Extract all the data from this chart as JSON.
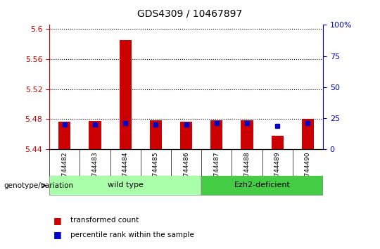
{
  "title": "GDS4309 / 10467897",
  "samples": [
    "GSM744482",
    "GSM744483",
    "GSM744484",
    "GSM744485",
    "GSM744486",
    "GSM744487",
    "GSM744488",
    "GSM744489",
    "GSM744490"
  ],
  "transformed_counts": [
    5.477,
    5.478,
    5.585,
    5.479,
    5.477,
    5.479,
    5.479,
    5.458,
    5.48
  ],
  "percentile_ranks": [
    20,
    20,
    21,
    20,
    20,
    21,
    21,
    19,
    21
  ],
  "baseline": 5.44,
  "ylim_left": [
    5.44,
    5.605
  ],
  "ylim_right": [
    0,
    100
  ],
  "yticks_left": [
    5.44,
    5.48,
    5.52,
    5.56,
    5.6
  ],
  "yticks_right": [
    0,
    25,
    50,
    75,
    100
  ],
  "ytick_labels_left": [
    "5.44",
    "5.48",
    "5.52",
    "5.56",
    "5.6"
  ],
  "ytick_labels_right": [
    "0",
    "25",
    "50",
    "75",
    "100%"
  ],
  "left_axis_color": "#cc0000",
  "right_axis_color": "#0000cc",
  "bar_color": "#cc0000",
  "dot_color": "#0000cc",
  "groups": [
    {
      "label": "wild type",
      "indices": [
        0,
        1,
        2,
        3,
        4
      ],
      "color": "#aaffaa"
    },
    {
      "label": "Ezh2-deficient",
      "indices": [
        5,
        6,
        7,
        8
      ],
      "color": "#44cc44"
    }
  ],
  "group_label_prefix": "genotype/variation",
  "legend_items": [
    {
      "color": "#cc0000",
      "label": "transformed count"
    },
    {
      "color": "#0000cc",
      "label": "percentile rank within the sample"
    }
  ],
  "grid_color": "black",
  "bar_width": 0.4,
  "tick_area_bg": "#cccccc"
}
